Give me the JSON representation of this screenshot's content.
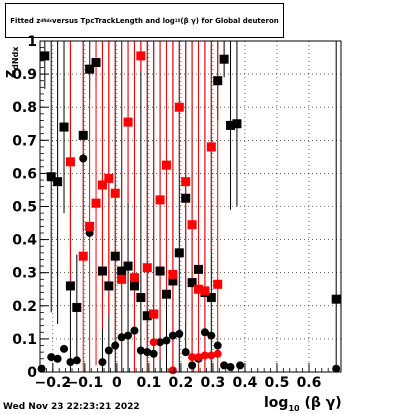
{
  "title": {
    "prefix": "Fitted  z",
    "prefix_sub": "dNdx",
    "middle": "  versus TpcTrackLength and log",
    "middle_sub": "10",
    "suffix": "(β γ) for Global deuteron"
  },
  "timestamp": "Wed Nov 23 22:23:21 2022",
  "colors": {
    "black": "#000000",
    "red": "#ff0000",
    "grid": "#000000"
  },
  "chart_data": {
    "type": "scatter",
    "xlabel": "log",
    "xlabel_sub": "10",
    "xlabel_suffix": " (β γ)",
    "ylabel": "z",
    "ylabel_sub": "dNdx",
    "xlim": [
      -0.24,
      0.7
    ],
    "ylim": [
      0,
      1
    ],
    "grid": true,
    "x_ticks": [
      -0.2,
      -0.1,
      0,
      0.1,
      0.2,
      0.3,
      0.4,
      0.5,
      0.6
    ],
    "x_tick_labels": [
      "−0.2",
      "−0.1",
      "0",
      "0.1",
      "0.2",
      "0.3",
      "0.4",
      "0.5",
      "0.6"
    ],
    "y_ticks": [
      0,
      0.1,
      0.2,
      0.3,
      0.4,
      0.5,
      0.6,
      0.7,
      0.8,
      0.9,
      1
    ],
    "y_tick_labels": [
      "0",
      "0.1",
      "0.2",
      "0.3",
      "0.4",
      "0.5",
      "0.6",
      "0.7",
      "0.8",
      "0.9",
      "1"
    ],
    "series": [
      {
        "marker": "square",
        "color": "#000000",
        "points": [
          {
            "x": -0.225,
            "y": 0.955,
            "err": 0.1
          },
          {
            "x": -0.205,
            "y": 0.59,
            "err": 0.41
          },
          {
            "x": -0.185,
            "y": 0.575,
            "err": 0.43
          },
          {
            "x": -0.165,
            "y": 0.74,
            "err": 0.26
          },
          {
            "x": -0.145,
            "y": 0.26,
            "err": 0.74
          },
          {
            "x": -0.125,
            "y": 0.195,
            "err": 0.16
          },
          {
            "x": -0.105,
            "y": 0.715,
            "err": 0.29
          },
          {
            "x": -0.085,
            "y": 0.915,
            "err": 0.09
          },
          {
            "x": -0.065,
            "y": 0.935,
            "err": 0.07
          },
          {
            "x": -0.045,
            "y": 0.305,
            "err": 0.695
          },
          {
            "x": -0.025,
            "y": 0.26,
            "err": 0.74
          },
          {
            "x": -0.005,
            "y": 0.35,
            "err": 0.65
          },
          {
            "x": 0.015,
            "y": 0.305,
            "err": 0.695
          },
          {
            "x": 0.035,
            "y": 0.32,
            "err": 0.68
          },
          {
            "x": 0.055,
            "y": 0.26,
            "err": 0.74
          },
          {
            "x": 0.075,
            "y": 0.225,
            "err": 0.775
          },
          {
            "x": 0.095,
            "y": 0.17,
            "err": 0.83
          },
          {
            "x": 0.115,
            "y": 0.175,
            "err": 0.825
          },
          {
            "x": 0.135,
            "y": 0.305,
            "err": 0.695
          },
          {
            "x": 0.155,
            "y": 0.235,
            "err": 0.765
          },
          {
            "x": 0.175,
            "y": 0.275,
            "err": 0.725
          },
          {
            "x": 0.195,
            "y": 0.36,
            "err": 0.64
          },
          {
            "x": 0.215,
            "y": 0.525,
            "err": 0.475
          },
          {
            "x": 0.235,
            "y": 0.27,
            "err": 0.73
          },
          {
            "x": 0.255,
            "y": 0.31,
            "err": 0.69
          },
          {
            "x": 0.275,
            "y": 0.24,
            "err": 0.76
          },
          {
            "x": 0.295,
            "y": 0.225,
            "err": 0.775
          },
          {
            "x": 0.315,
            "y": 0.88,
            "err": 0.12
          },
          {
            "x": 0.335,
            "y": 0.945,
            "err": 0.055
          },
          {
            "x": 0.355,
            "y": 0.745,
            "err": 0.255
          },
          {
            "x": 0.375,
            "y": 0.75,
            "err": 0.25
          },
          {
            "x": 0.685,
            "y": 0.22,
            "err": 0.78
          }
        ]
      },
      {
        "marker": "circle",
        "color": "#000000",
        "points": [
          {
            "x": -0.235,
            "y": 0.01
          },
          {
            "x": -0.205,
            "y": 0.045
          },
          {
            "x": -0.185,
            "y": 0.04
          },
          {
            "x": -0.165,
            "y": 0.07
          },
          {
            "x": -0.145,
            "y": 0.03
          },
          {
            "x": -0.125,
            "y": 0.035
          },
          {
            "x": -0.105,
            "y": 0.645
          },
          {
            "x": -0.085,
            "y": 0.42
          },
          {
            "x": -0.045,
            "y": 0.03
          },
          {
            "x": -0.025,
            "y": 0.065
          },
          {
            "x": -0.005,
            "y": 0.08
          },
          {
            "x": 0.015,
            "y": 0.105
          },
          {
            "x": 0.035,
            "y": 0.11
          },
          {
            "x": 0.055,
            "y": 0.125
          },
          {
            "x": 0.075,
            "y": 0.065
          },
          {
            "x": 0.095,
            "y": 0.06
          },
          {
            "x": 0.115,
            "y": 0.055
          },
          {
            "x": 0.135,
            "y": 0.09
          },
          {
            "x": 0.155,
            "y": 0.095
          },
          {
            "x": 0.175,
            "y": 0.11
          },
          {
            "x": 0.195,
            "y": 0.115
          },
          {
            "x": 0.215,
            "y": 0.06
          },
          {
            "x": 0.235,
            "y": 0.02
          },
          {
            "x": 0.255,
            "y": 0.04
          },
          {
            "x": 0.275,
            "y": 0.12
          },
          {
            "x": 0.295,
            "y": 0.11
          },
          {
            "x": 0.315,
            "y": 0.08
          },
          {
            "x": 0.335,
            "y": 0.02
          },
          {
            "x": 0.355,
            "y": 0.015
          },
          {
            "x": 0.385,
            "y": 0.02
          },
          {
            "x": 0.685,
            "y": 0.01
          }
        ]
      },
      {
        "marker": "square",
        "color": "#ff0000",
        "points": [
          {
            "x": -0.145,
            "y": 0.635,
            "err": 0.365
          },
          {
            "x": -0.105,
            "y": 0.35,
            "err": 0.65
          },
          {
            "x": -0.085,
            "y": 0.44,
            "err": 0.56
          },
          {
            "x": -0.065,
            "y": 0.51,
            "err": 0.49
          },
          {
            "x": -0.045,
            "y": 0.565,
            "err": 0.435
          },
          {
            "x": -0.025,
            "y": 0.585,
            "err": 0.415
          },
          {
            "x": -0.005,
            "y": 0.54,
            "err": 0.46
          },
          {
            "x": 0.015,
            "y": 0.28,
            "err": 0.72
          },
          {
            "x": 0.035,
            "y": 0.755,
            "err": 0.245
          },
          {
            "x": 0.055,
            "y": 0.285,
            "err": 0.715
          },
          {
            "x": 0.075,
            "y": 0.955,
            "err": 0.045
          },
          {
            "x": 0.095,
            "y": 0.315,
            "err": 0.685
          },
          {
            "x": 0.115,
            "y": 0.175,
            "err": 0.825
          },
          {
            "x": 0.135,
            "y": 0.52,
            "err": 0.48
          },
          {
            "x": 0.155,
            "y": 0.625,
            "err": 0.375
          },
          {
            "x": 0.175,
            "y": 0.295,
            "err": 0.705
          },
          {
            "x": 0.195,
            "y": 0.8,
            "err": 0.2
          },
          {
            "x": 0.215,
            "y": 0.575,
            "err": 0.425
          },
          {
            "x": 0.235,
            "y": 0.445,
            "err": 0.555
          },
          {
            "x": 0.255,
            "y": 0.25,
            "err": 0.75
          },
          {
            "x": 0.275,
            "y": 0.245,
            "err": 0.755
          },
          {
            "x": 0.295,
            "y": 0.68,
            "err": 0.32
          },
          {
            "x": 0.315,
            "y": 0.265,
            "err": 0.735
          }
        ]
      },
      {
        "marker": "circle",
        "color": "#ff0000",
        "points": [
          {
            "x": 0.115,
            "y": 0.09
          },
          {
            "x": 0.175,
            "y": 0.005
          },
          {
            "x": 0.235,
            "y": 0.045
          },
          {
            "x": 0.255,
            "y": 0.045
          },
          {
            "x": 0.275,
            "y": 0.05
          },
          {
            "x": 0.295,
            "y": 0.05
          },
          {
            "x": 0.315,
            "y": 0.055
          }
        ]
      }
    ]
  }
}
